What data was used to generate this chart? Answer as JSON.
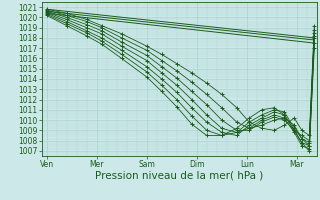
{
  "bg_color": "#cce8e8",
  "grid_color": "#a8cccc",
  "line_color": "#1a5c1a",
  "xlabel": "Pression niveau de la mer( hPa )",
  "xlabel_fontsize": 7.5,
  "tick_fontsize": 5.5,
  "ylim": [
    1006.5,
    1021.5
  ],
  "yticks": [
    1007,
    1008,
    1009,
    1010,
    1011,
    1012,
    1013,
    1014,
    1015,
    1016,
    1017,
    1018,
    1019,
    1020,
    1021
  ],
  "xtick_labels": [
    "Ven",
    "Mer",
    "Sam",
    "Dim",
    "Lun",
    "Mar"
  ],
  "xtick_positions": [
    0,
    1,
    2,
    3,
    4,
    5
  ],
  "xlim": [
    -0.1,
    5.4
  ],
  "flat_lines": [
    {
      "x": [
        0.0,
        5.35
      ],
      "y": [
        1020.8,
        1018.0
      ]
    },
    {
      "x": [
        0.0,
        5.35
      ],
      "y": [
        1020.6,
        1017.8
      ]
    },
    {
      "x": [
        0.0,
        5.35
      ],
      "y": [
        1020.4,
        1017.5
      ]
    }
  ],
  "fan_lines": [
    {
      "x": [
        0.0,
        0.4,
        0.8,
        1.1,
        1.5,
        2.0,
        2.3,
        2.6,
        2.9,
        3.2,
        3.5,
        3.8,
        4.05,
        4.3,
        4.55,
        4.75,
        4.95,
        5.1,
        5.25,
        5.35
      ],
      "y": [
        1020.8,
        1020.4,
        1019.8,
        1019.2,
        1018.4,
        1017.2,
        1016.4,
        1015.5,
        1014.6,
        1013.6,
        1012.5,
        1011.2,
        1009.8,
        1009.2,
        1009.0,
        1009.5,
        1010.2,
        1009.0,
        1008.5,
        1019.2
      ],
      "marker": true
    },
    {
      "x": [
        0.0,
        0.4,
        0.8,
        1.1,
        1.5,
        2.0,
        2.3,
        2.6,
        2.9,
        3.2,
        3.5,
        3.8,
        4.05,
        4.3,
        4.55,
        4.75,
        4.95,
        5.1,
        5.25,
        5.35
      ],
      "y": [
        1020.7,
        1020.2,
        1019.6,
        1019.0,
        1018.0,
        1016.8,
        1015.8,
        1014.8,
        1013.7,
        1012.5,
        1011.2,
        1009.8,
        1009.2,
        1009.5,
        1010.0,
        1010.2,
        1009.5,
        1008.2,
        1007.8,
        1018.5
      ],
      "marker": true
    },
    {
      "x": [
        0.0,
        0.4,
        0.8,
        1.1,
        1.5,
        2.0,
        2.3,
        2.6,
        2.9,
        3.2,
        3.5,
        3.8,
        4.05,
        4.3,
        4.55,
        4.75,
        4.95,
        5.1,
        5.25,
        5.35
      ],
      "y": [
        1020.6,
        1020.0,
        1019.3,
        1018.7,
        1017.6,
        1016.3,
        1015.2,
        1014.1,
        1012.8,
        1011.5,
        1010.0,
        1009.0,
        1009.0,
        1009.8,
        1010.3,
        1010.0,
        1009.0,
        1007.8,
        1007.5,
        1018.0
      ],
      "marker": true
    },
    {
      "x": [
        0.0,
        0.4,
        0.8,
        1.1,
        1.5,
        2.0,
        2.3,
        2.6,
        2.9,
        3.2,
        3.5,
        3.8,
        4.05,
        4.3,
        4.55,
        4.75,
        4.95,
        5.1,
        5.25,
        5.35
      ],
      "y": [
        1020.5,
        1019.8,
        1019.0,
        1018.4,
        1017.2,
        1015.8,
        1014.6,
        1013.4,
        1012.0,
        1010.5,
        1009.2,
        1008.8,
        1009.2,
        1010.0,
        1010.5,
        1010.2,
        1008.8,
        1007.5,
        1007.2,
        1017.5
      ],
      "marker": true
    },
    {
      "x": [
        0.0,
        0.4,
        0.8,
        1.1,
        1.5,
        2.0,
        2.3,
        2.6,
        2.9,
        3.2,
        3.5,
        3.8,
        4.05,
        4.3,
        4.55,
        4.75,
        4.95,
        5.1,
        5.25,
        5.35
      ],
      "y": [
        1020.4,
        1019.6,
        1018.7,
        1018.0,
        1016.8,
        1015.2,
        1014.0,
        1012.7,
        1011.2,
        1009.8,
        1008.8,
        1008.5,
        1009.5,
        1010.2,
        1010.8,
        1010.5,
        1009.0,
        1007.8,
        1007.0,
        1017.0
      ],
      "marker": true
    },
    {
      "x": [
        0.0,
        0.4,
        0.8,
        1.1,
        1.5,
        2.0,
        2.3,
        2.6,
        2.9,
        3.2,
        3.5,
        3.8,
        4.05,
        4.3,
        4.55,
        4.75,
        4.95,
        5.1,
        5.25,
        5.35
      ],
      "y": [
        1020.3,
        1019.4,
        1018.5,
        1017.7,
        1016.4,
        1014.7,
        1013.4,
        1012.0,
        1010.4,
        1009.0,
        1008.5,
        1008.8,
        1009.8,
        1010.5,
        1011.0,
        1010.8,
        1009.2,
        1008.2,
        1007.5,
        1018.8
      ],
      "marker": true
    },
    {
      "x": [
        0.0,
        0.4,
        0.8,
        1.1,
        1.5,
        2.0,
        2.3,
        2.6,
        2.9,
        3.2,
        3.5,
        3.8,
        4.05,
        4.3,
        4.55,
        4.75,
        4.95,
        5.1,
        5.25,
        5.35
      ],
      "y": [
        1020.2,
        1019.2,
        1018.2,
        1017.4,
        1016.0,
        1014.2,
        1012.8,
        1011.3,
        1009.6,
        1008.5,
        1008.5,
        1009.2,
        1010.2,
        1011.0,
        1011.2,
        1010.5,
        1009.0,
        1008.5,
        1008.0,
        1018.2
      ],
      "marker": true
    }
  ]
}
